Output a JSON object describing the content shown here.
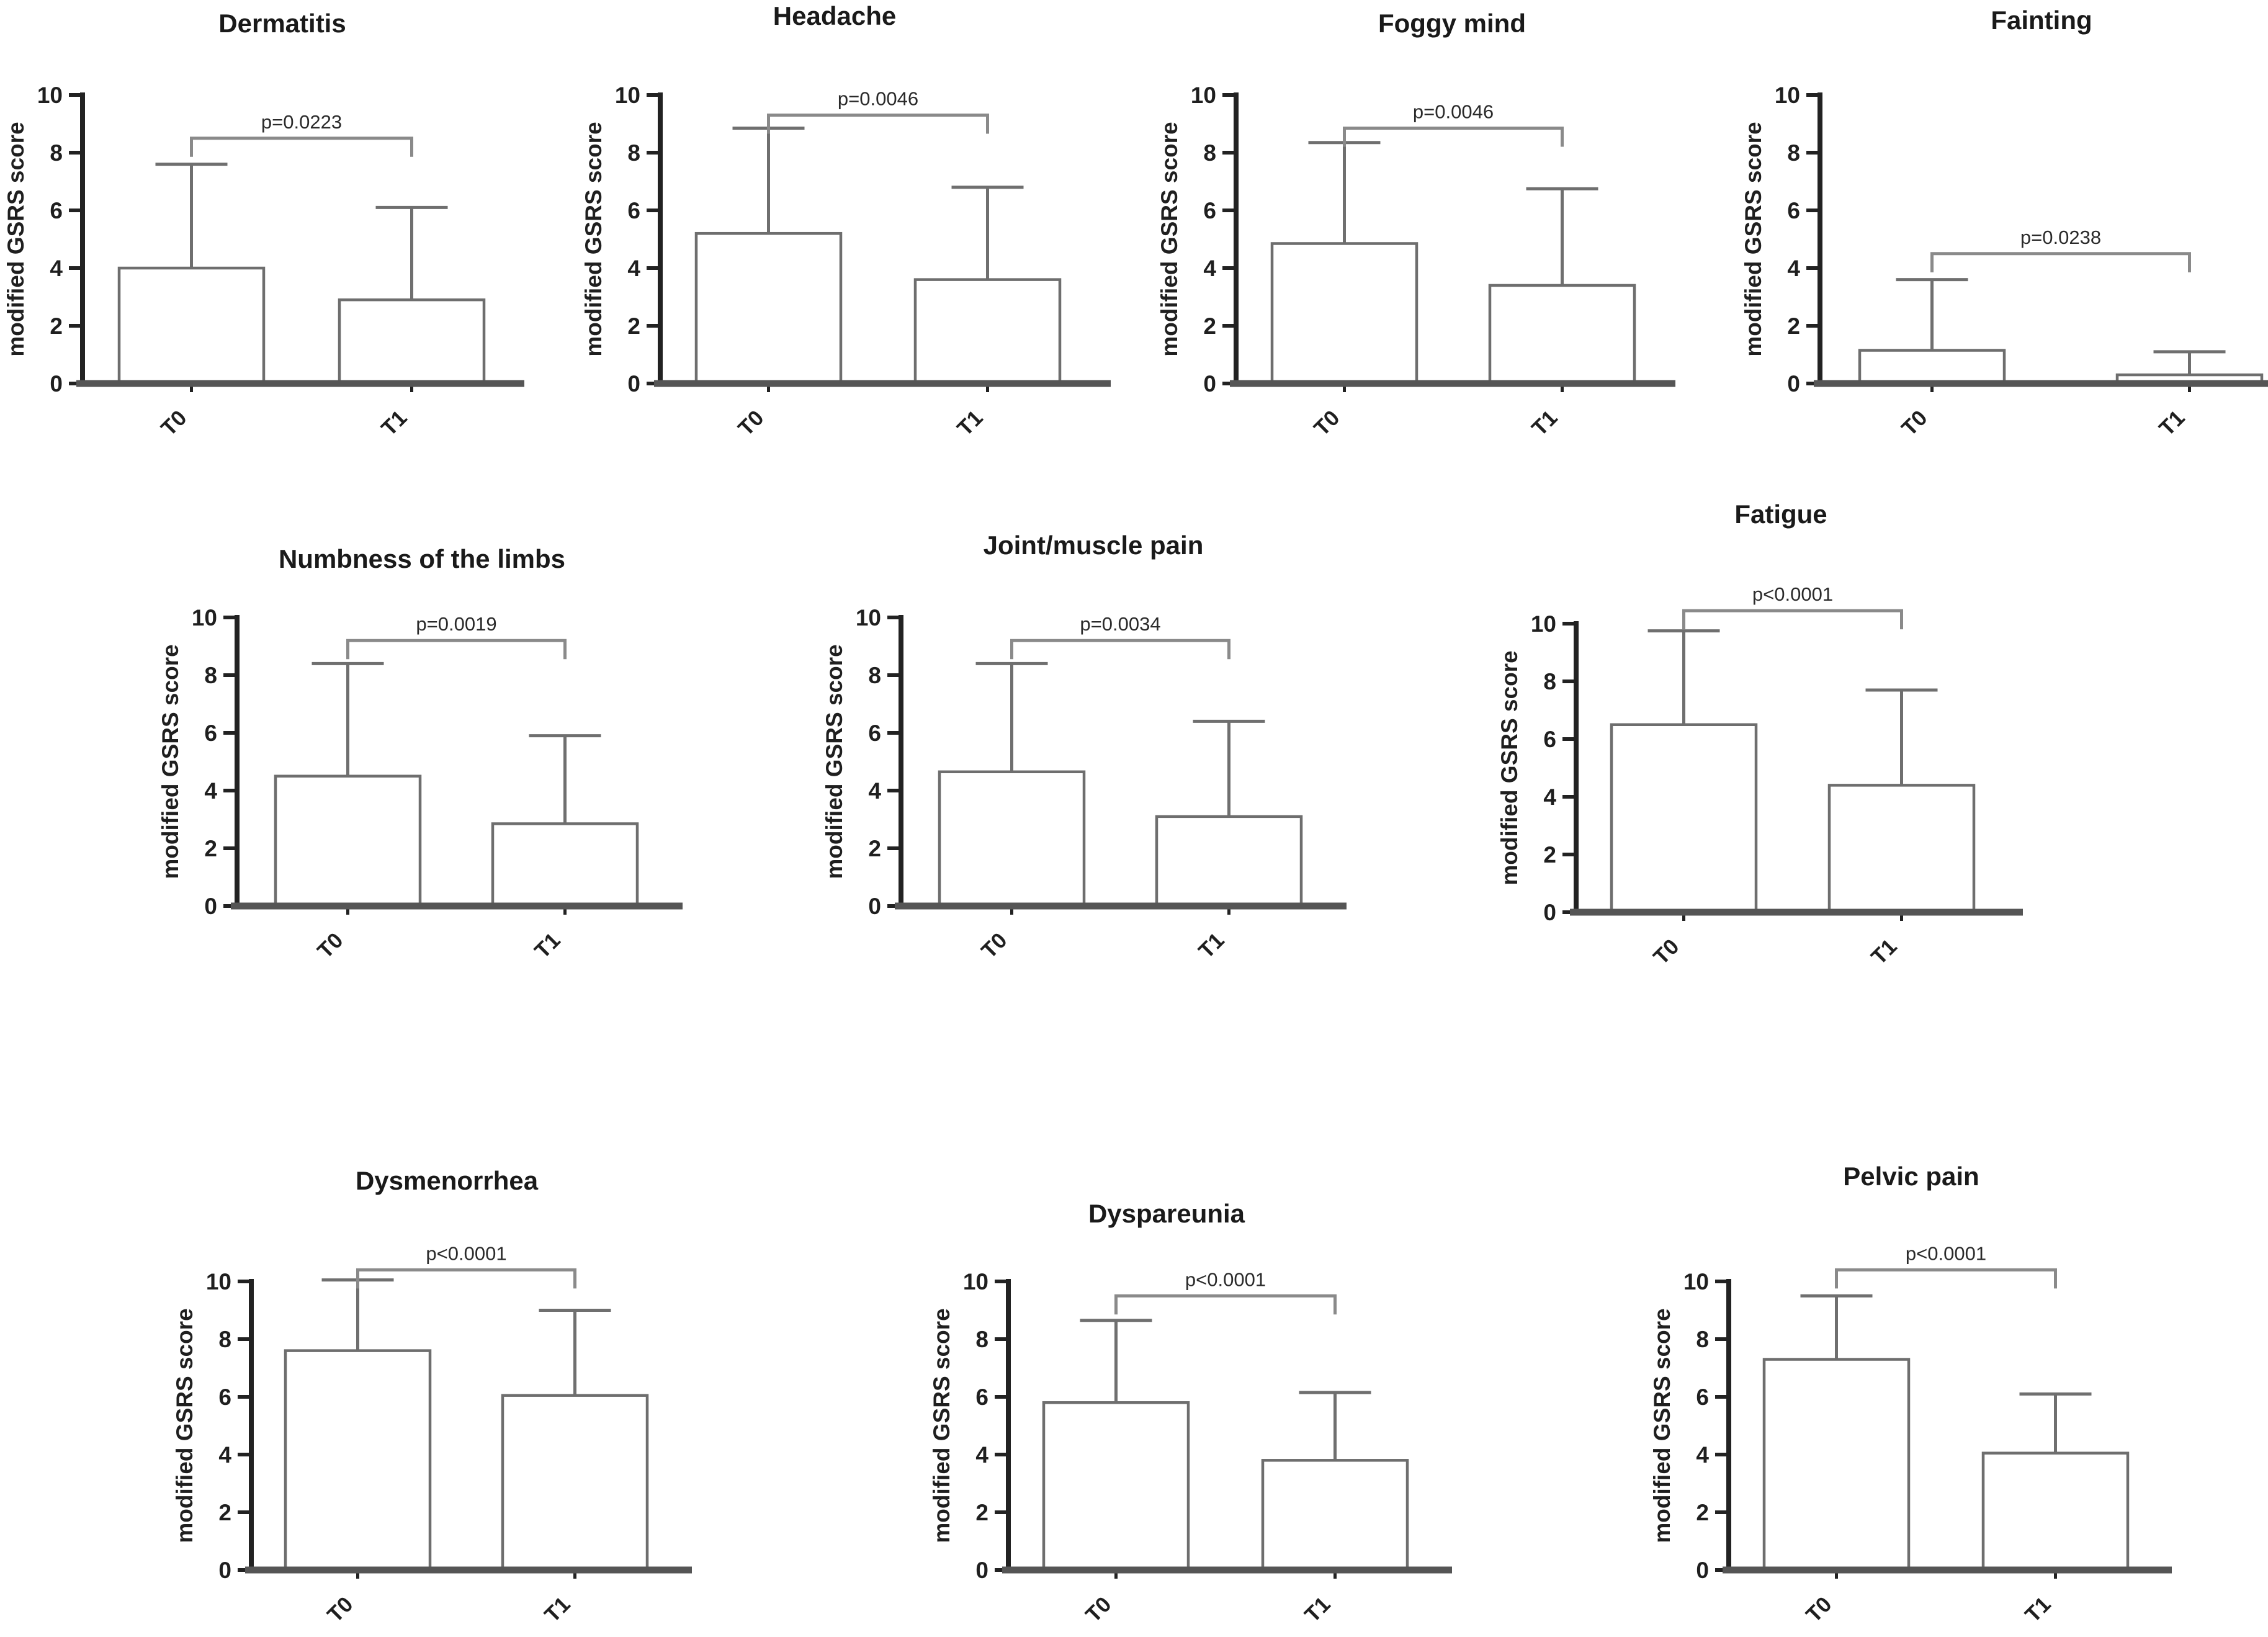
{
  "figure": {
    "ylabel": "modified GSRS score",
    "yticks": [
      0,
      2,
      4,
      6,
      8,
      10
    ],
    "categories": [
      "T0",
      "T1"
    ],
    "colors": {
      "background": "#ffffff",
      "axis": "#3a3a3a",
      "baseline": "#555555",
      "bar_fill": "#ffffff",
      "bar_stroke": "#6e6e6e",
      "error_bar": "#6f6f6f",
      "bracket": "#8a8a8a",
      "text": "#1a1a1a"
    }
  },
  "chart_data": [
    {
      "type": "bar",
      "title": "Dermatitis",
      "p_label": "p=0.0223",
      "categories": [
        "T0",
        "T1"
      ],
      "values": [
        4.0,
        2.9
      ],
      "whisker_top": [
        7.6,
        6.1
      ],
      "bracket_y": 8.5,
      "xlabel": "",
      "ylabel": "modified GSRS score",
      "ylim": [
        0,
        10
      ]
    },
    {
      "type": "bar",
      "title": "Headache",
      "p_label": "p=0.0046",
      "categories": [
        "T0",
        "T1"
      ],
      "values": [
        5.2,
        3.6
      ],
      "whisker_top": [
        8.85,
        6.8
      ],
      "bracket_y": 9.3,
      "xlabel": "",
      "ylabel": "modified GSRS score",
      "ylim": [
        0,
        10
      ]
    },
    {
      "type": "bar",
      "title": "Foggy mind",
      "p_label": "p=0.0046",
      "categories": [
        "T0",
        "T1"
      ],
      "values": [
        4.85,
        3.4
      ],
      "whisker_top": [
        8.35,
        6.75
      ],
      "bracket_y": 8.85,
      "xlabel": "",
      "ylabel": "modified GSRS score",
      "ylim": [
        0,
        10
      ]
    },
    {
      "type": "bar",
      "title": "Fainting",
      "p_label": "p=0.0238",
      "categories": [
        "T0",
        "T1"
      ],
      "values": [
        1.15,
        0.3
      ],
      "whisker_top": [
        3.6,
        1.1
      ],
      "bracket_y": 4.5,
      "xlabel": "",
      "ylabel": "modified GSRS score",
      "ylim": [
        0,
        10
      ]
    },
    {
      "type": "bar",
      "title": "Numbness of the limbs",
      "p_label": "p=0.0019",
      "categories": [
        "T0",
        "T1"
      ],
      "values": [
        4.5,
        2.85
      ],
      "whisker_top": [
        8.4,
        5.9
      ],
      "bracket_y": 9.2,
      "xlabel": "",
      "ylabel": "modified GSRS score",
      "ylim": [
        0,
        10
      ]
    },
    {
      "type": "bar",
      "title": "Joint/muscle pain",
      "p_label": "p=0.0034",
      "categories": [
        "T0",
        "T1"
      ],
      "values": [
        4.65,
        3.1
      ],
      "whisker_top": [
        8.4,
        6.4
      ],
      "bracket_y": 9.2,
      "xlabel": "",
      "ylabel": "modified GSRS score",
      "ylim": [
        0,
        10
      ]
    },
    {
      "type": "bar",
      "title": "Fatigue",
      "p_label": "p<0.0001",
      "categories": [
        "T0",
        "T1"
      ],
      "values": [
        6.5,
        4.4
      ],
      "whisker_top": [
        9.75,
        7.7
      ],
      "bracket_y": 10.45,
      "xlabel": "",
      "ylabel": "modified GSRS score",
      "ylim": [
        0,
        10
      ]
    },
    {
      "type": "bar",
      "title": "Dysmenorrhea",
      "p_label": "p<0.0001",
      "categories": [
        "T0",
        "T1"
      ],
      "values": [
        7.6,
        6.05
      ],
      "whisker_top": [
        10.05,
        9.0
      ],
      "bracket_y": 10.4,
      "xlabel": "",
      "ylabel": "modified GSRS score",
      "ylim": [
        0,
        10
      ]
    },
    {
      "type": "bar",
      "title": "Dyspareunia",
      "p_label": "p<0.0001",
      "categories": [
        "T0",
        "T1"
      ],
      "values": [
        5.8,
        3.8
      ],
      "whisker_top": [
        8.65,
        6.15
      ],
      "bracket_y": 9.5,
      "xlabel": "",
      "ylabel": "modified GSRS score",
      "ylim": [
        0,
        10
      ]
    },
    {
      "type": "bar",
      "title": "Pelvic pain",
      "p_label": "p<0.0001",
      "categories": [
        "T0",
        "T1"
      ],
      "values": [
        7.3,
        4.05
      ],
      "whisker_top": [
        9.5,
        6.1
      ],
      "bracket_y": 10.4,
      "xlabel": "",
      "ylabel": "modified GSRS score",
      "ylim": [
        0,
        10
      ]
    }
  ]
}
